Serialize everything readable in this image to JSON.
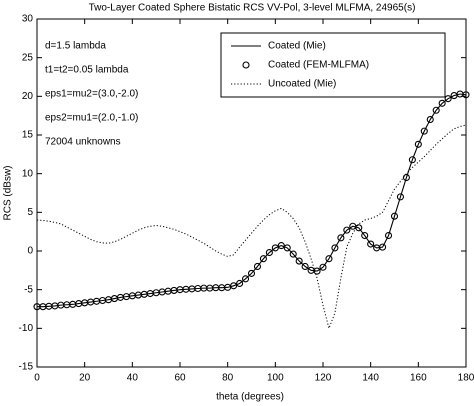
{
  "chart_data": {
    "type": "line",
    "title": "Two-Layer Coated Sphere Bistatic RCS VV-Pol, 3-level MLFMA,  24965(s)",
    "xlabel": "theta (degrees)",
    "ylabel": "RCS (dBsw)",
    "annotations": [
      "d=1.5 lambda",
      "t1=t2=0.05 lambda",
      "eps1=mu2=(3.0,-2.0)",
      "eps2=mu1=(2.0,-1.0)",
      "72004 unknowns"
    ],
    "xlim": [
      0,
      180
    ],
    "xticks": [
      0,
      20,
      40,
      60,
      80,
      100,
      120,
      140,
      160,
      180
    ],
    "ylim": [
      -15,
      30
    ],
    "yticks": [
      -15,
      -10,
      -5,
      0,
      5,
      10,
      15,
      20,
      25,
      30
    ],
    "legend": "upper right",
    "x": [
      0,
      2.5,
      5,
      7.5,
      10,
      12.5,
      15,
      17.5,
      20,
      22.5,
      25,
      27.5,
      30,
      32.5,
      35,
      37.5,
      40,
      42.5,
      45,
      47.5,
      50,
      52.5,
      55,
      57.5,
      60,
      62.5,
      65,
      67.5,
      70,
      72.5,
      75,
      77.5,
      80,
      82.5,
      85,
      87.5,
      90,
      92.5,
      95,
      97.5,
      100,
      102.5,
      105,
      107.5,
      110,
      112.5,
      115,
      117.5,
      120,
      122.5,
      125,
      127.5,
      130,
      132.5,
      135,
      137.5,
      140,
      142.5,
      145,
      147.5,
      150,
      152.5,
      155,
      157.5,
      160,
      162.5,
      165,
      167.5,
      170,
      172.5,
      175,
      177.5,
      180
    ],
    "series": [
      {
        "name": "Coated (Mie)",
        "color": "#000000",
        "style": "solid",
        "values": [
          -7.2,
          -7.2,
          -7.15,
          -7.1,
          -7.0,
          -6.95,
          -6.9,
          -6.8,
          -6.7,
          -6.6,
          -6.5,
          -6.4,
          -6.3,
          -6.15,
          -6.0,
          -5.9,
          -5.8,
          -5.7,
          -5.6,
          -5.5,
          -5.4,
          -5.3,
          -5.2,
          -5.1,
          -5.0,
          -4.95,
          -4.9,
          -4.85,
          -4.8,
          -4.8,
          -4.75,
          -4.75,
          -4.7,
          -4.5,
          -4.2,
          -3.6,
          -2.9,
          -2.0,
          -1.0,
          -0.2,
          0.4,
          0.7,
          0.4,
          -0.4,
          -1.3,
          -2.0,
          -2.5,
          -2.6,
          -2.1,
          -1.0,
          0.4,
          1.7,
          2.7,
          3.2,
          3.0,
          2.0,
          0.9,
          0.4,
          0.5,
          2.0,
          4.5,
          7.0,
          9.5,
          11.8,
          13.8,
          15.5,
          17.0,
          18.2,
          19.1,
          19.7,
          20.1,
          20.3,
          20.2
        ]
      },
      {
        "name": "Coated (FEM-MLFMA)",
        "color": "#000000",
        "style": "markers",
        "values": [
          -7.2,
          -7.2,
          -7.15,
          -7.1,
          -7.0,
          -6.95,
          -6.9,
          -6.8,
          -6.7,
          -6.6,
          -6.5,
          -6.4,
          -6.3,
          -6.15,
          -6.0,
          -5.9,
          -5.8,
          -5.7,
          -5.6,
          -5.5,
          -5.4,
          -5.3,
          -5.2,
          -5.1,
          -5.0,
          -4.95,
          -4.9,
          -4.85,
          -4.8,
          -4.8,
          -4.75,
          -4.75,
          -4.7,
          -4.5,
          -4.2,
          -3.6,
          -2.9,
          -2.0,
          -1.0,
          -0.2,
          0.4,
          0.7,
          0.4,
          -0.4,
          -1.3,
          -2.0,
          -2.5,
          -2.6,
          -2.1,
          -1.0,
          0.4,
          1.7,
          2.7,
          3.2,
          3.0,
          2.0,
          0.9,
          0.4,
          0.5,
          2.0,
          4.5,
          7.0,
          9.5,
          11.8,
          13.8,
          15.5,
          17.0,
          18.2,
          19.1,
          19.7,
          20.1,
          20.3,
          20.2
        ]
      },
      {
        "name": "Uncoated (Mie)",
        "color": "#000000",
        "style": "dotted",
        "values": [
          4.0,
          3.95,
          3.85,
          3.7,
          3.5,
          3.1,
          2.7,
          2.3,
          1.9,
          1.5,
          1.2,
          1.05,
          1.0,
          1.2,
          1.5,
          1.9,
          2.3,
          2.7,
          3.0,
          3.2,
          3.3,
          3.2,
          3.0,
          2.8,
          2.5,
          2.2,
          1.8,
          1.4,
          1.0,
          0.5,
          0.0,
          -0.4,
          -0.7,
          -0.5,
          0.5,
          1.4,
          2.3,
          3.2,
          4.0,
          4.7,
          5.2,
          5.5,
          5.0,
          4.2,
          3.0,
          1.2,
          -1.0,
          -3.5,
          -7.0,
          -10.0,
          -8.0,
          -3.5,
          0.5,
          2.3,
          3.5,
          4.0,
          4.2,
          4.5,
          5.0,
          6.5,
          8.0,
          9.0,
          10.0,
          10.8,
          11.5,
          12.2,
          13.0,
          13.8,
          14.5,
          15.2,
          15.8,
          16.1,
          16.3
        ]
      }
    ]
  }
}
